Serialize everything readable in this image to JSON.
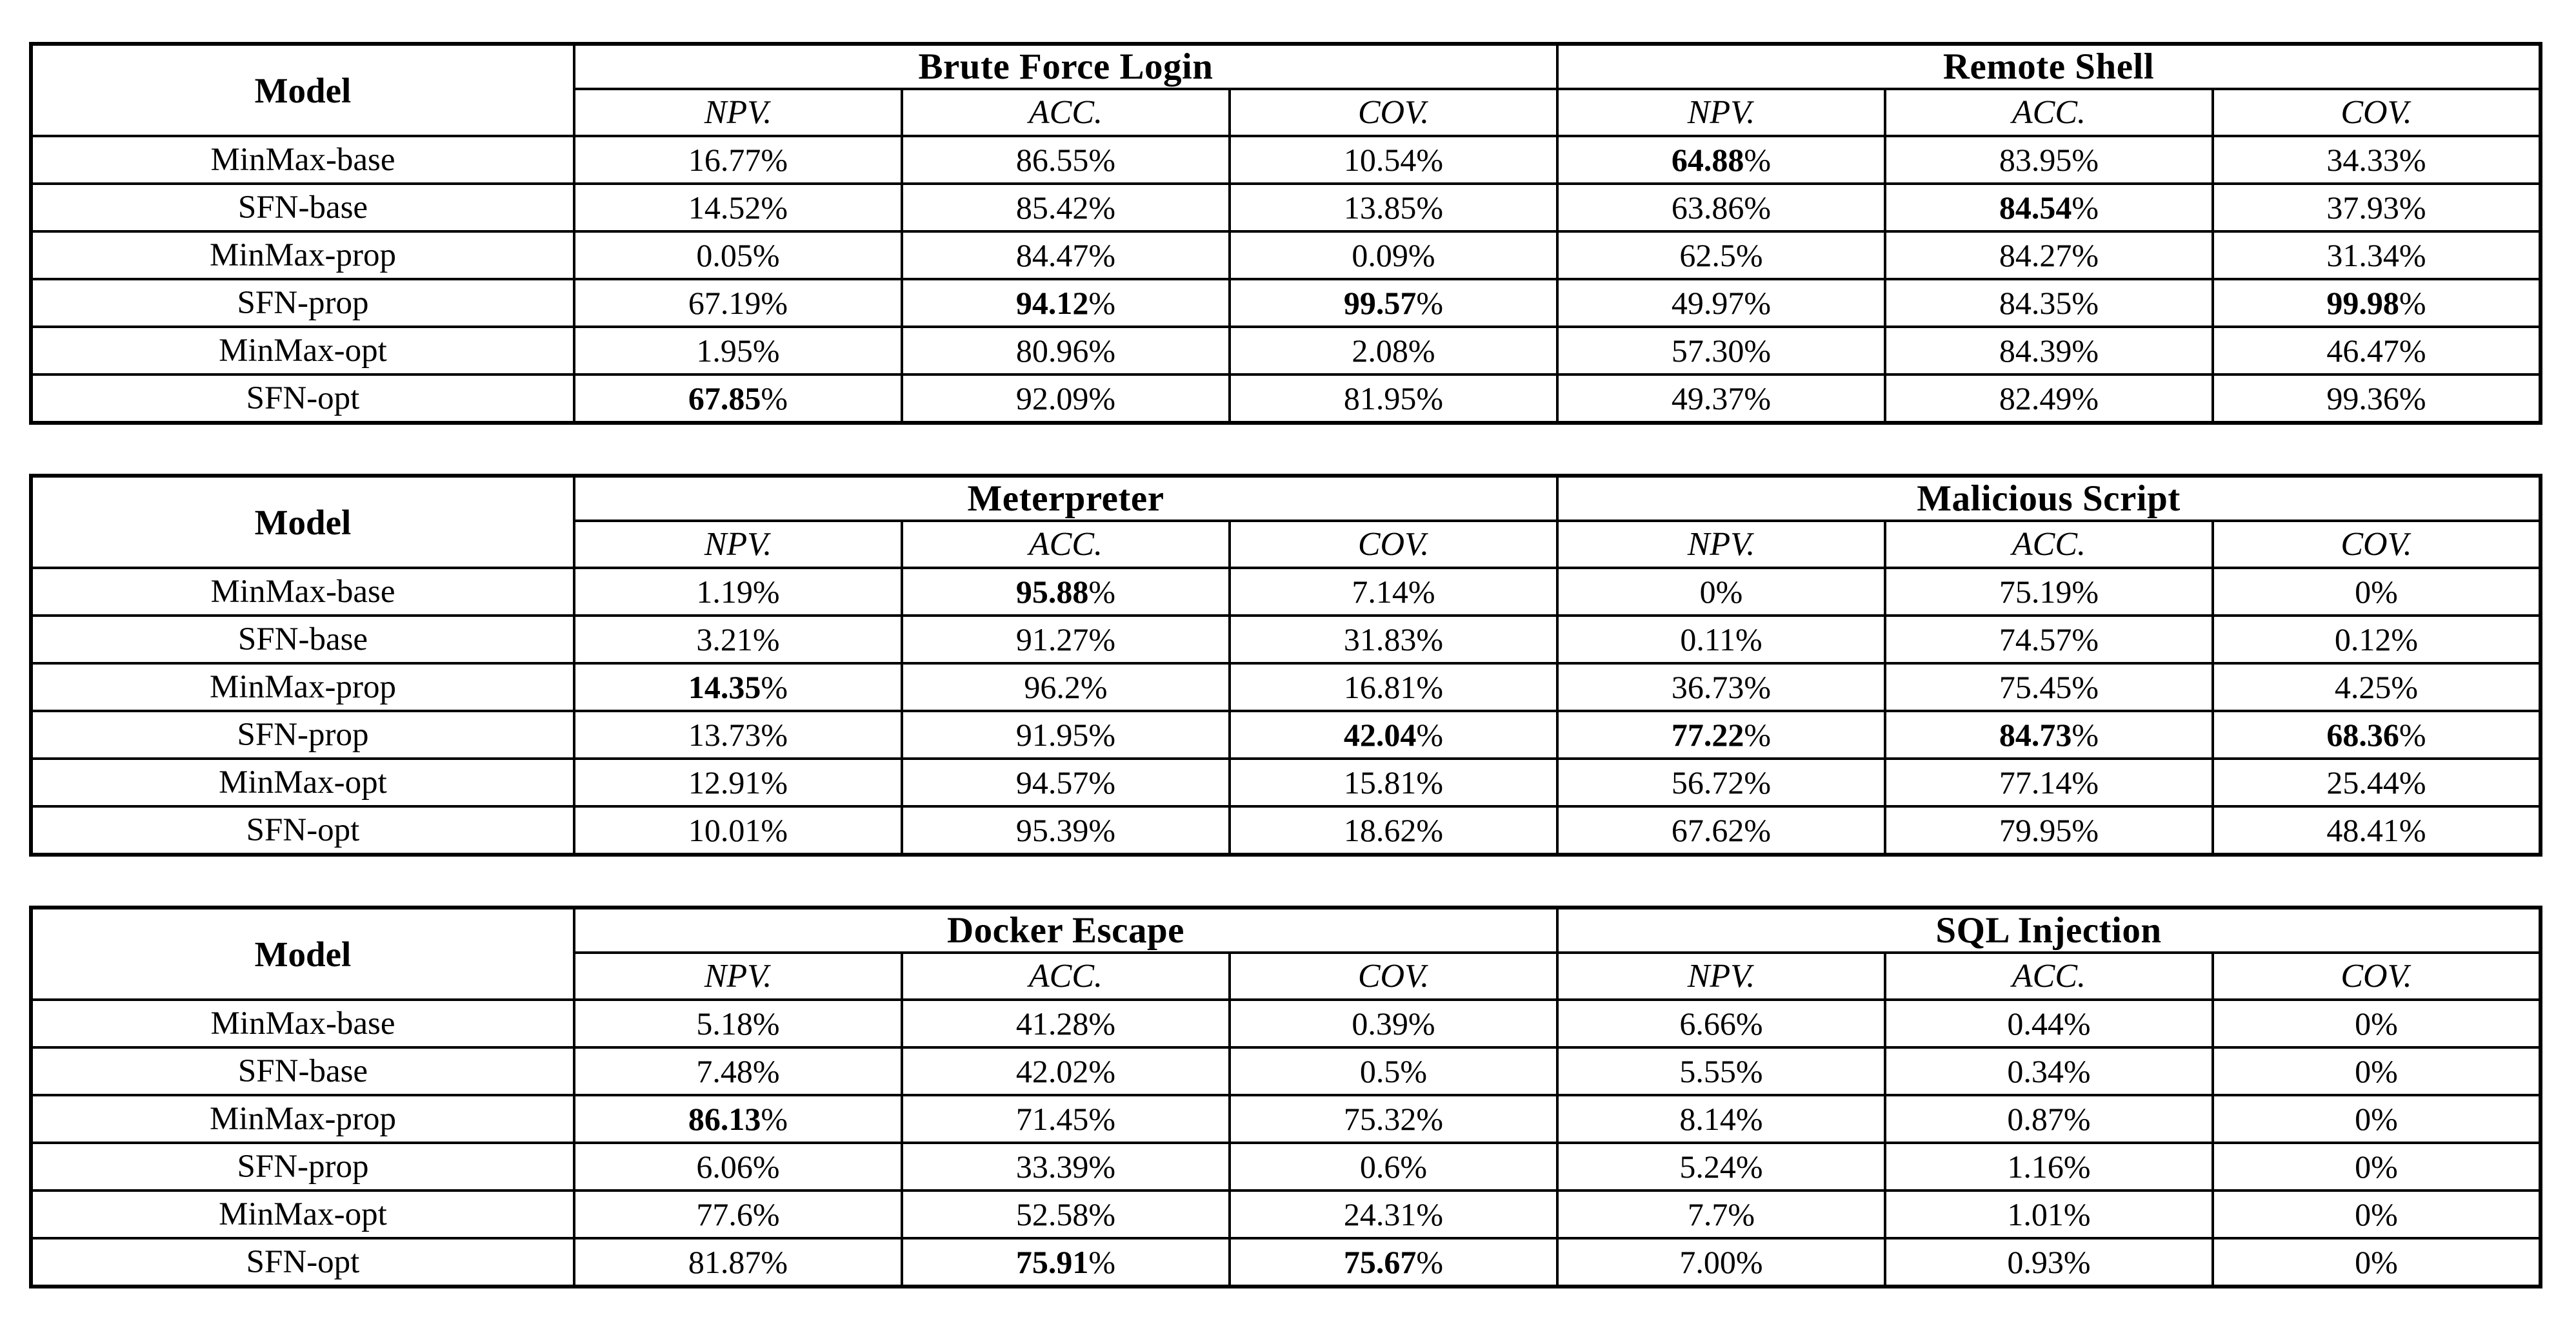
{
  "colors": {
    "border": "#000000",
    "text": "#000000",
    "background": "#ffffff"
  },
  "tables": [
    {
      "model_header": "Model",
      "groups": [
        {
          "title": "Brute Force Login",
          "metrics": [
            "NPV.",
            "ACC.",
            "COV."
          ]
        },
        {
          "title": "Remote Shell",
          "metrics": [
            "NPV.",
            "ACC.",
            "COV."
          ]
        }
      ],
      "rows": [
        {
          "model": "MinMax-base",
          "values": [
            {
              "text": "16.77%",
              "bold": false
            },
            {
              "text": "86.55%",
              "bold": false
            },
            {
              "text": "10.54%",
              "bold": false
            },
            {
              "text": "64.88%",
              "bold": true
            },
            {
              "text": "83.95%",
              "bold": false
            },
            {
              "text": "34.33%",
              "bold": false
            }
          ]
        },
        {
          "model": "SFN-base",
          "values": [
            {
              "text": "14.52%",
              "bold": false
            },
            {
              "text": "85.42%",
              "bold": false
            },
            {
              "text": "13.85%",
              "bold": false
            },
            {
              "text": "63.86%",
              "bold": false
            },
            {
              "text": "84.54%",
              "bold": true
            },
            {
              "text": "37.93%",
              "bold": false
            }
          ]
        },
        {
          "model": "MinMax-prop",
          "values": [
            {
              "text": "0.05%",
              "bold": false
            },
            {
              "text": "84.47%",
              "bold": false
            },
            {
              "text": "0.09%",
              "bold": false
            },
            {
              "text": "62.5%",
              "bold": false
            },
            {
              "text": "84.27%",
              "bold": false
            },
            {
              "text": "31.34%",
              "bold": false
            }
          ]
        },
        {
          "model": "SFN-prop",
          "values": [
            {
              "text": "67.19%",
              "bold": false
            },
            {
              "text": "94.12%",
              "bold": true
            },
            {
              "text": "99.57%",
              "bold": true
            },
            {
              "text": "49.97%",
              "bold": false
            },
            {
              "text": "84.35%",
              "bold": false
            },
            {
              "text": "99.98%",
              "bold": true
            }
          ]
        },
        {
          "model": "MinMax-opt",
          "values": [
            {
              "text": "1.95%",
              "bold": false
            },
            {
              "text": "80.96%",
              "bold": false
            },
            {
              "text": "2.08%",
              "bold": false
            },
            {
              "text": "57.30%",
              "bold": false
            },
            {
              "text": "84.39%",
              "bold": false
            },
            {
              "text": "46.47%",
              "bold": false
            }
          ]
        },
        {
          "model": "SFN-opt",
          "values": [
            {
              "text": "67.85%",
              "bold": true
            },
            {
              "text": "92.09%",
              "bold": false
            },
            {
              "text": "81.95%",
              "bold": false
            },
            {
              "text": "49.37%",
              "bold": false
            },
            {
              "text": "82.49%",
              "bold": false
            },
            {
              "text": "99.36%",
              "bold": false
            }
          ]
        }
      ]
    },
    {
      "model_header": "Model",
      "groups": [
        {
          "title": "Meterpreter",
          "metrics": [
            "NPV.",
            "ACC.",
            "COV."
          ]
        },
        {
          "title": "Malicious Script",
          "metrics": [
            "NPV.",
            "ACC.",
            "COV."
          ]
        }
      ],
      "rows": [
        {
          "model": "MinMax-base",
          "values": [
            {
              "text": "1.19%",
              "bold": false
            },
            {
              "text": "95.88%",
              "bold": true
            },
            {
              "text": "7.14%",
              "bold": false
            },
            {
              "text": "0%",
              "bold": false
            },
            {
              "text": "75.19%",
              "bold": false
            },
            {
              "text": "0%",
              "bold": false
            }
          ]
        },
        {
          "model": "SFN-base",
          "values": [
            {
              "text": "3.21%",
              "bold": false
            },
            {
              "text": "91.27%",
              "bold": false
            },
            {
              "text": "31.83%",
              "bold": false
            },
            {
              "text": "0.11%",
              "bold": false
            },
            {
              "text": "74.57%",
              "bold": false
            },
            {
              "text": "0.12%",
              "bold": false
            }
          ]
        },
        {
          "model": "MinMax-prop",
          "values": [
            {
              "text": "14.35%",
              "bold": true
            },
            {
              "text": "96.2%",
              "bold": false
            },
            {
              "text": "16.81%",
              "bold": false
            },
            {
              "text": "36.73%",
              "bold": false
            },
            {
              "text": "75.45%",
              "bold": false
            },
            {
              "text": "4.25%",
              "bold": false
            }
          ]
        },
        {
          "model": "SFN-prop",
          "values": [
            {
              "text": "13.73%",
              "bold": false
            },
            {
              "text": "91.95%",
              "bold": false
            },
            {
              "text": "42.04%",
              "bold": true
            },
            {
              "text": "77.22%",
              "bold": true
            },
            {
              "text": "84.73%",
              "bold": true
            },
            {
              "text": "68.36%",
              "bold": true
            }
          ]
        },
        {
          "model": "MinMax-opt",
          "values": [
            {
              "text": "12.91%",
              "bold": false
            },
            {
              "text": "94.57%",
              "bold": false
            },
            {
              "text": "15.81%",
              "bold": false
            },
            {
              "text": "56.72%",
              "bold": false
            },
            {
              "text": "77.14%",
              "bold": false
            },
            {
              "text": "25.44%",
              "bold": false
            }
          ]
        },
        {
          "model": "SFN-opt",
          "values": [
            {
              "text": "10.01%",
              "bold": false
            },
            {
              "text": "95.39%",
              "bold": false
            },
            {
              "text": "18.62%",
              "bold": false
            },
            {
              "text": "67.62%",
              "bold": false
            },
            {
              "text": "79.95%",
              "bold": false
            },
            {
              "text": "48.41%",
              "bold": false
            }
          ]
        }
      ]
    },
    {
      "model_header": "Model",
      "groups": [
        {
          "title": "Docker Escape",
          "metrics": [
            "NPV.",
            "ACC.",
            "COV."
          ]
        },
        {
          "title": "SQL Injection",
          "metrics": [
            "NPV.",
            "ACC.",
            "COV."
          ]
        }
      ],
      "rows": [
        {
          "model": "MinMax-base",
          "values": [
            {
              "text": "5.18%",
              "bold": false
            },
            {
              "text": "41.28%",
              "bold": false
            },
            {
              "text": "0.39%",
              "bold": false
            },
            {
              "text": "6.66%",
              "bold": false
            },
            {
              "text": "0.44%",
              "bold": false
            },
            {
              "text": "0%",
              "bold": false
            }
          ]
        },
        {
          "model": "SFN-base",
          "values": [
            {
              "text": "7.48%",
              "bold": false
            },
            {
              "text": "42.02%",
              "bold": false
            },
            {
              "text": "0.5%",
              "bold": false
            },
            {
              "text": "5.55%",
              "bold": false
            },
            {
              "text": "0.34%",
              "bold": false
            },
            {
              "text": "0%",
              "bold": false
            }
          ]
        },
        {
          "model": "MinMax-prop",
          "values": [
            {
              "text": "86.13%",
              "bold": true
            },
            {
              "text": "71.45%",
              "bold": false
            },
            {
              "text": "75.32%",
              "bold": false
            },
            {
              "text": "8.14%",
              "bold": false
            },
            {
              "text": "0.87%",
              "bold": false
            },
            {
              "text": "0%",
              "bold": false
            }
          ]
        },
        {
          "model": "SFN-prop",
          "values": [
            {
              "text": "6.06%",
              "bold": false
            },
            {
              "text": "33.39%",
              "bold": false
            },
            {
              "text": "0.6%",
              "bold": false
            },
            {
              "text": "5.24%",
              "bold": false
            },
            {
              "text": "1.16%",
              "bold": false
            },
            {
              "text": "0%",
              "bold": false
            }
          ]
        },
        {
          "model": "MinMax-opt",
          "values": [
            {
              "text": "77.6%",
              "bold": false
            },
            {
              "text": "52.58%",
              "bold": false
            },
            {
              "text": "24.31%",
              "bold": false
            },
            {
              "text": "7.7%",
              "bold": false
            },
            {
              "text": "1.01%",
              "bold": false
            },
            {
              "text": "0%",
              "bold": false
            }
          ]
        },
        {
          "model": "SFN-opt",
          "values": [
            {
              "text": "81.87%",
              "bold": false
            },
            {
              "text": "75.91%",
              "bold": true
            },
            {
              "text": "75.67%",
              "bold": true
            },
            {
              "text": "7.00%",
              "bold": false
            },
            {
              "text": "0.93%",
              "bold": false
            },
            {
              "text": "0%",
              "bold": false
            }
          ]
        }
      ]
    }
  ]
}
